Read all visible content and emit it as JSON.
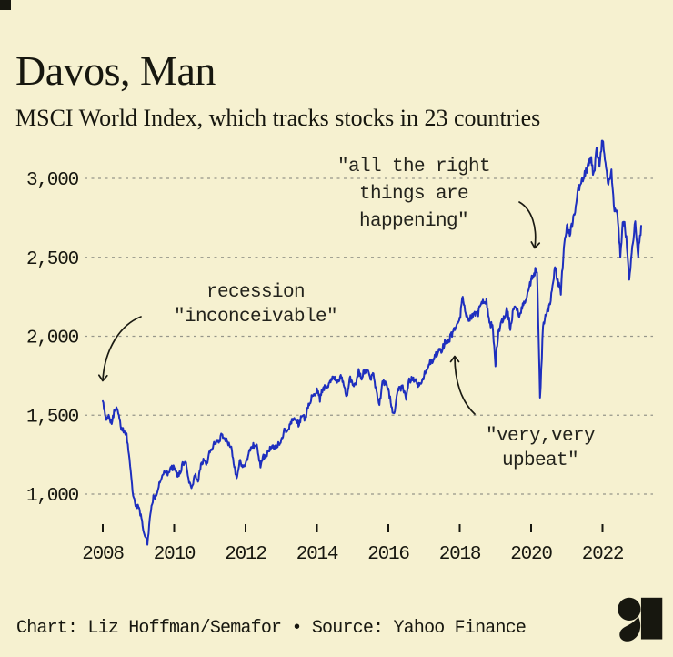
{
  "title": "Davos, Man",
  "subtitle": "MSCI World Index, which tracks stocks in 23 countries",
  "footer": {
    "credit": "Chart: Liz Hoffman/Semafor • Source: Yahoo Finance",
    "logo_name": "semafor-logo"
  },
  "colors": {
    "background": "#f6f1d0",
    "line": "#1e2fbe",
    "grid": "#96968a",
    "text": "#17170f",
    "annotation": "#23231c",
    "corner_square": "#17170f"
  },
  "chart_data": {
    "type": "line",
    "title": "Davos, Man",
    "subtitle": "MSCI World Index, which tracks stocks in 23 countries",
    "series_name": "MSCI World Index",
    "x_start_year": 2008,
    "x_step_months": 1,
    "x_ticks": [
      2008,
      2010,
      2012,
      2014,
      2016,
      2018,
      2020,
      2022
    ],
    "x_tick_labels": [
      "2008",
      "2010",
      "2012",
      "2014",
      "2016",
      "2018",
      "2020",
      "2022"
    ],
    "y_ticks": [
      1000,
      1500,
      2000,
      2500,
      3000
    ],
    "y_tick_labels": [
      "1,000",
      "1,500",
      "2,000",
      "2,500",
      "3,000"
    ],
    "xlim": [
      2007.85,
      2023.45
    ],
    "ylim": [
      650,
      3330
    ],
    "grid": "dashed-horizontal",
    "legend": "none",
    "values_monthly": [
      1589,
      1470,
      1485,
      1460,
      1530,
      1545,
      1430,
      1400,
      1375,
      1235,
      1005,
      930,
      920,
      845,
      740,
      690,
      870,
      985,
      980,
      1065,
      1105,
      1150,
      1125,
      1165,
      1168,
      1120,
      1135,
      1200,
      1200,
      1080,
      1045,
      1125,
      1080,
      1180,
      1220,
      1190,
      1280,
      1300,
      1335,
      1325,
      1380,
      1355,
      1330,
      1305,
      1205,
      1095,
      1215,
      1180,
      1183,
      1245,
      1305,
      1310,
      1295,
      1180,
      1235,
      1250,
      1280,
      1310,
      1300,
      1315,
      1340,
      1405,
      1405,
      1435,
      1475,
      1475,
      1435,
      1510,
      1475,
      1545,
      1605,
      1630,
      1660,
      1600,
      1675,
      1675,
      1690,
      1720,
      1745,
      1715,
      1750,
      1700,
      1620,
      1740,
      1710,
      1680,
      1775,
      1740,
      1780,
      1780,
      1735,
      1765,
      1645,
      1560,
      1710,
      1705,
      1665,
      1560,
      1495,
      1650,
      1670,
      1675,
      1610,
      1725,
      1725,
      1725,
      1690,
      1710,
      1750,
      1790,
      1835,
      1855,
      1880,
      1910,
      1915,
      1960,
      1960,
      2000,
      2035,
      2075,
      2105,
      2250,
      2155,
      2105,
      2130,
      2140,
      2135,
      2200,
      2220,
      2230,
      2065,
      2085,
      1830,
      2030,
      2090,
      2110,
      2180,
      2045,
      2180,
      2185,
      2140,
      2180,
      2230,
      2290,
      2355,
      2400,
      2430,
      1605,
      2055,
      2145,
      2185,
      2285,
      2430,
      2345,
      2275,
      2560,
      2690,
      2660,
      2725,
      2810,
      2940,
      2975,
      3020,
      3070,
      3140,
      3010,
      3170,
      3100,
      3240,
      3070,
      2980,
      3050,
      2800,
      2795,
      2500,
      2745,
      2630,
      2380,
      2550,
      2730,
      2520,
      2700
    ],
    "annotations": [
      {
        "text": "recession\n\"inconceivable\"",
        "points_to": {
          "year": 2008.05,
          "value": 1590
        }
      },
      {
        "text": "\"all the right\nthings are\nhappening\"",
        "points_to": {
          "year": 2020.1,
          "value": 2430
        }
      },
      {
        "text": "\"very,very\nupbeat\"",
        "points_to": {
          "year": 2017.9,
          "value": 1985
        }
      }
    ]
  }
}
